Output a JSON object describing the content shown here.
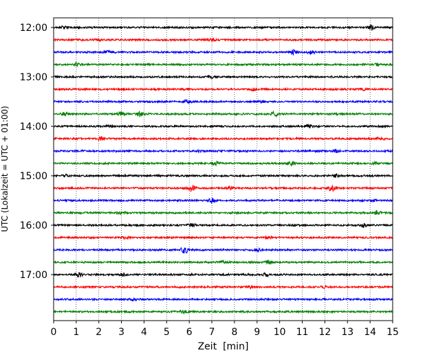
{
  "chart_data": {
    "type": "line",
    "title": "",
    "xlabel": "Zeit  [min]",
    "ylabel": "UTC (Lokalzeit = UTC + 01:00)",
    "xlim": [
      0,
      15
    ],
    "x_ticks": [
      0,
      1,
      2,
      3,
      4,
      5,
      6,
      7,
      8,
      9,
      10,
      11,
      12,
      13,
      14,
      15
    ],
    "x_tick_labels": [
      "0",
      "1",
      "2",
      "3",
      "4",
      "5",
      "6",
      "7",
      "8",
      "9",
      "10",
      "11",
      "12",
      "13",
      "14",
      "15"
    ],
    "y_tick_labels": [
      "12:00",
      "13:00",
      "14:00",
      "15:00",
      "16:00",
      "17:00"
    ],
    "grid": "vertical dotted",
    "trace_colors": [
      "#000000",
      "#ff0000",
      "#0000ff",
      "#008000"
    ],
    "traces": [
      {
        "start": "12:00",
        "color": "#000000",
        "events": [
          [
            0.5,
            2.0
          ],
          [
            14.0,
            4.0
          ]
        ]
      },
      {
        "start": "12:15",
        "color": "#ff0000",
        "events": [
          [
            2.0,
            1.5
          ],
          [
            7.0,
            1.8
          ]
        ]
      },
      {
        "start": "12:30",
        "color": "#0000ff",
        "events": [
          [
            2.4,
            2.0
          ],
          [
            10.6,
            3.0
          ],
          [
            11.4,
            2.5
          ]
        ]
      },
      {
        "start": "12:45",
        "color": "#008000",
        "events": [
          [
            1.0,
            2.0
          ],
          [
            14.3,
            2.0
          ]
        ]
      },
      {
        "start": "13:00",
        "color": "#000000",
        "events": [
          [
            7.0,
            1.5
          ]
        ]
      },
      {
        "start": "13:15",
        "color": "#ff0000",
        "events": [
          [
            5.8,
            2.0
          ],
          [
            8.8,
            2.0
          ],
          [
            13.7,
            1.8
          ]
        ]
      },
      {
        "start": "13:30",
        "color": "#0000ff",
        "events": [
          [
            5.9,
            2.0
          ],
          [
            9.2,
            1.5
          ]
        ]
      },
      {
        "start": "13:45",
        "color": "#008000",
        "events": [
          [
            0.5,
            2.5
          ],
          [
            3.0,
            3.0
          ],
          [
            3.8,
            3.5
          ],
          [
            9.8,
            4.0
          ]
        ]
      },
      {
        "start": "14:00",
        "color": "#000000",
        "events": [
          [
            2.5,
            1.8
          ],
          [
            11.3,
            2.5
          ]
        ]
      },
      {
        "start": "14:15",
        "color": "#ff0000",
        "events": [
          [
            2.1,
            2.5
          ],
          [
            14.5,
            1.8
          ]
        ]
      },
      {
        "start": "14:30",
        "color": "#0000ff",
        "events": [
          [
            6.5,
            1.5
          ],
          [
            12.5,
            1.5
          ]
        ]
      },
      {
        "start": "14:45",
        "color": "#008000",
        "events": [
          [
            7.2,
            3.0
          ],
          [
            10.5,
            2.5
          ],
          [
            14.2,
            1.5
          ]
        ]
      },
      {
        "start": "15:00",
        "color": "#000000",
        "events": [
          [
            0.5,
            2.0
          ],
          [
            12.5,
            1.8
          ]
        ]
      },
      {
        "start": "15:15",
        "color": "#ff0000",
        "events": [
          [
            6.1,
            5.0
          ],
          [
            7.8,
            2.0
          ],
          [
            12.3,
            4.5
          ]
        ]
      },
      {
        "start": "15:30",
        "color": "#0000ff",
        "events": [
          [
            7.0,
            3.0
          ],
          [
            14.2,
            1.5
          ]
        ]
      },
      {
        "start": "15:45",
        "color": "#008000",
        "events": [
          [
            3.0,
            1.5
          ],
          [
            14.3,
            3.0
          ]
        ]
      },
      {
        "start": "16:00",
        "color": "#000000",
        "events": [
          [
            6.1,
            3.0
          ],
          [
            13.7,
            3.0
          ]
        ]
      },
      {
        "start": "16:15",
        "color": "#ff0000",
        "events": [
          [
            3.2,
            1.5
          ],
          [
            9.5,
            1.5
          ]
        ]
      },
      {
        "start": "16:30",
        "color": "#0000ff",
        "events": [
          [
            5.8,
            5.0
          ],
          [
            9.0,
            1.8
          ]
        ]
      },
      {
        "start": "16:45",
        "color": "#008000",
        "events": [
          [
            7.5,
            1.5
          ],
          [
            9.5,
            2.5
          ]
        ]
      },
      {
        "start": "17:00",
        "color": "#000000",
        "events": [
          [
            1.1,
            3.5
          ],
          [
            3.1,
            2.0
          ],
          [
            9.4,
            2.0
          ]
        ]
      },
      {
        "start": "17:15",
        "color": "#ff0000",
        "events": [
          [
            8.7,
            1.5
          ],
          [
            12.0,
            1.5
          ]
        ]
      },
      {
        "start": "17:30",
        "color": "#0000ff",
        "events": [
          [
            3.5,
            1.5
          ]
        ]
      },
      {
        "start": "17:45",
        "color": "#008000",
        "events": [
          [
            5.8,
            2.0
          ]
        ]
      }
    ]
  }
}
